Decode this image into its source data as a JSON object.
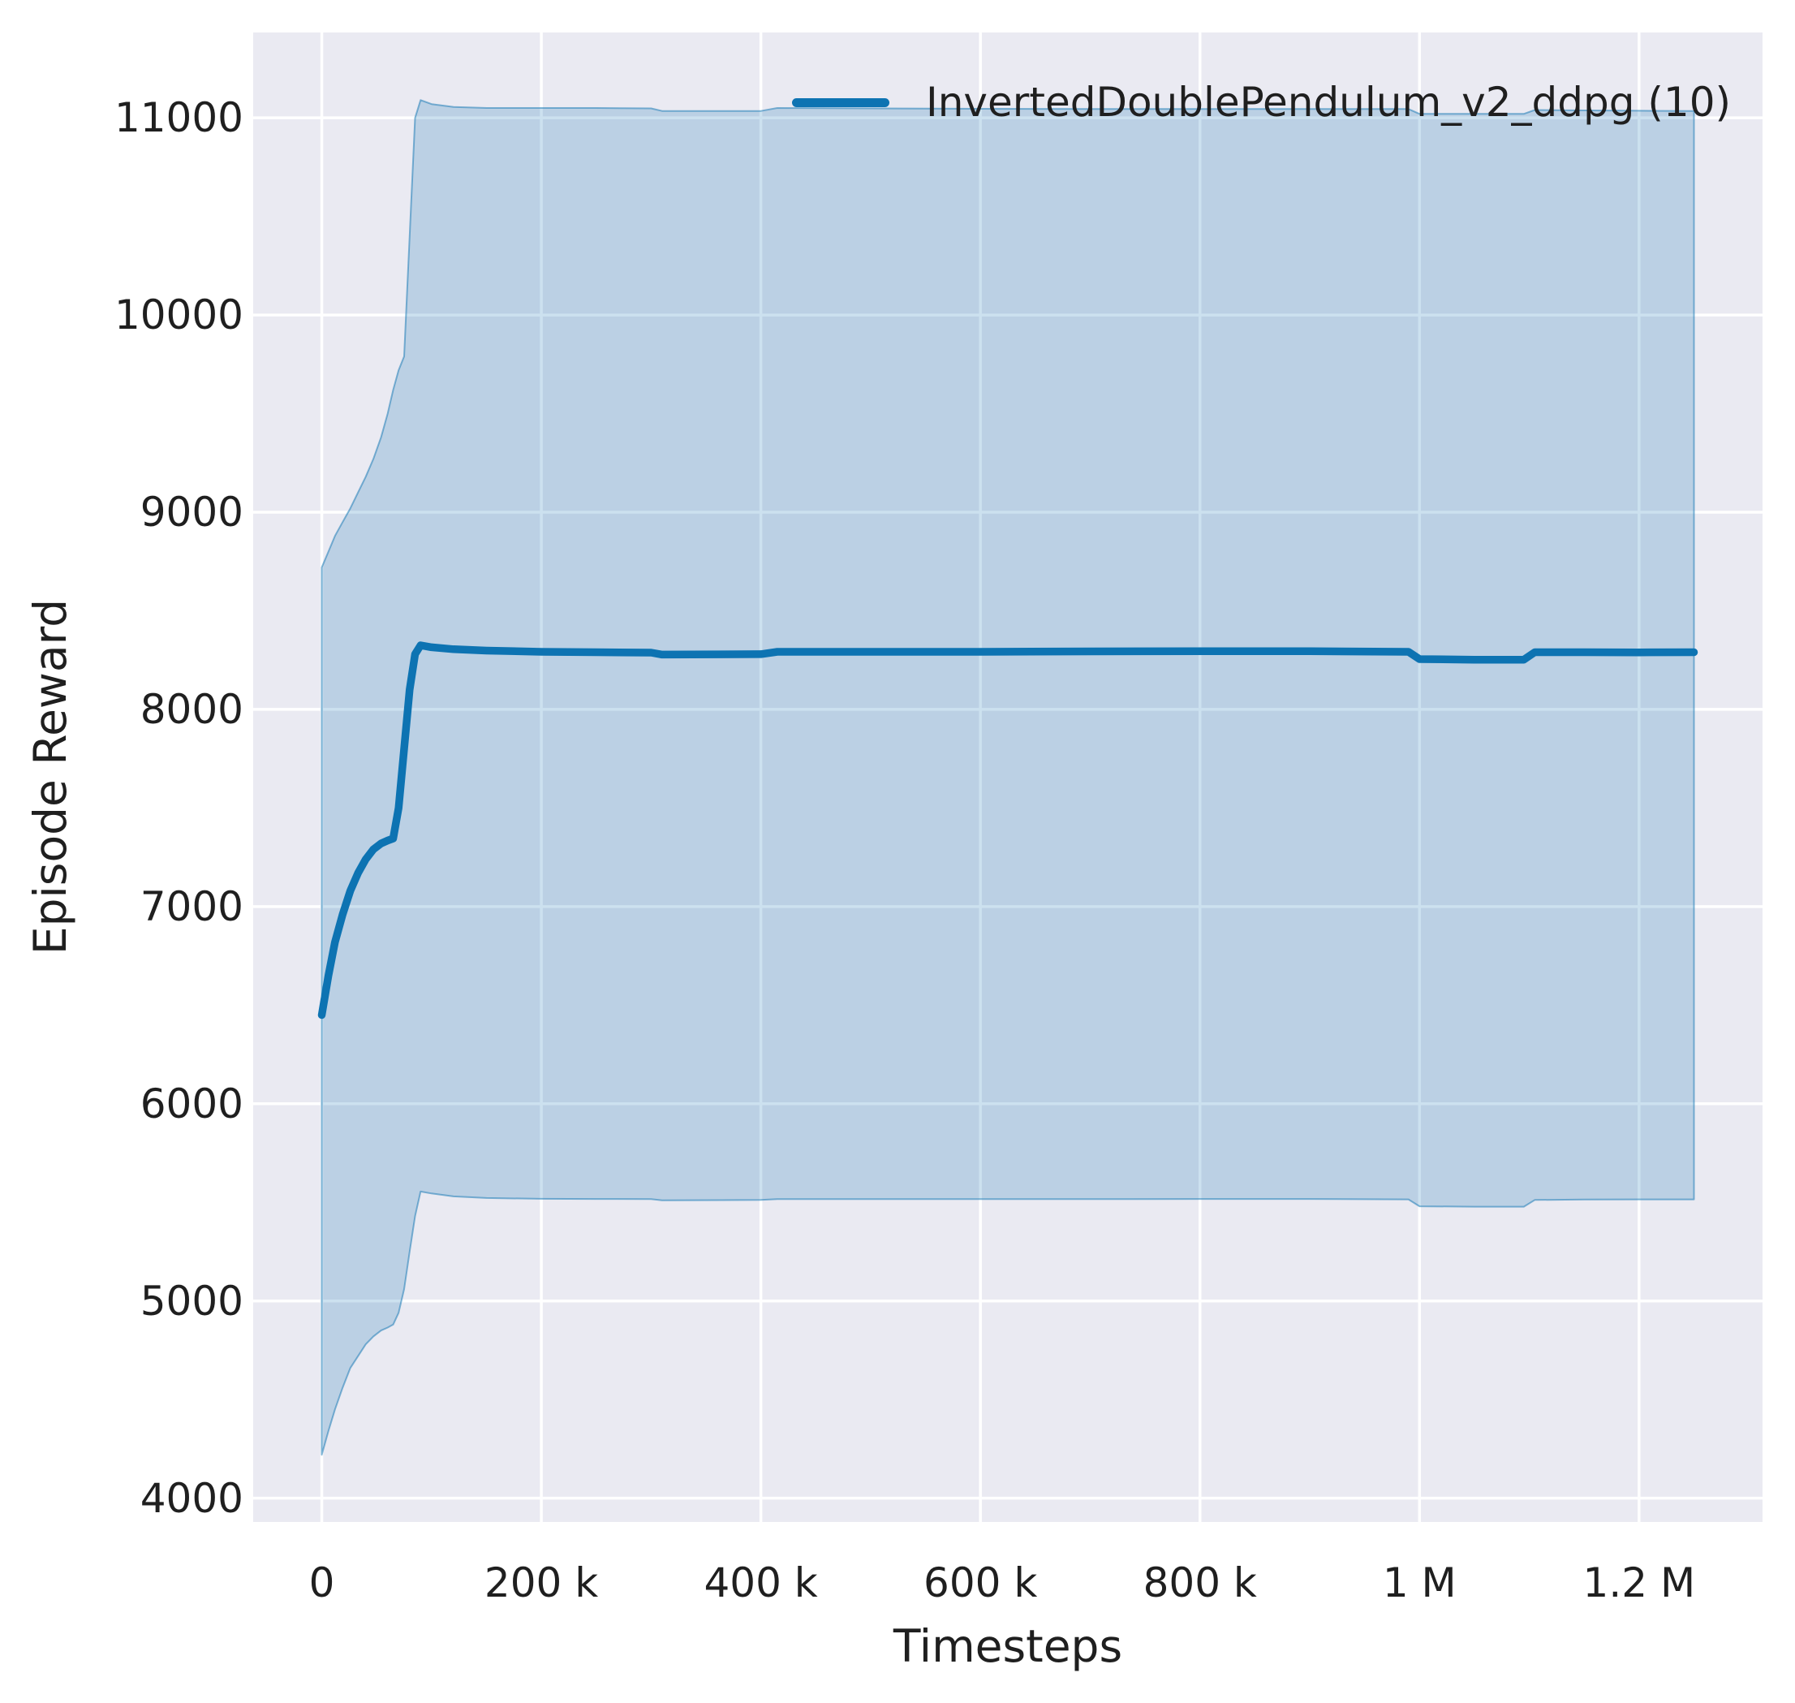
{
  "figure": {
    "xlabel": "Timesteps",
    "ylabel": "Episode Reward"
  },
  "legend": {
    "label": "InvertedDoublePendulum_v2_ddpg (10)"
  },
  "colors": {
    "figure_bg": "#ffffff",
    "axes_bg": "#eaeaf2",
    "grid": "#ffffff",
    "line": "#0d73b2",
    "band_fill": "rgba(13,115,178,0.21)",
    "band_edge": "rgba(13,115,178,0.50)",
    "text": "#1f1f1f"
  },
  "chart_data": {
    "type": "line",
    "title": "",
    "xlabel": "Timesteps",
    "ylabel": "Episode Reward",
    "grid": true,
    "legend_position": "upper right",
    "legend_frame": false,
    "x_ticks": {
      "values": [
        0,
        200000,
        400000,
        600000,
        800000,
        1000000,
        1200000
      ],
      "labels": [
        "0",
        "200 k",
        "400 k",
        "600 k",
        "800 k",
        "1 M",
        "1.2 M"
      ]
    },
    "y_ticks": {
      "values": [
        4000,
        5000,
        6000,
        7000,
        8000,
        9000,
        10000,
        11000
      ],
      "labels": [
        "4000",
        "5000",
        "6000",
        "7000",
        "8000",
        "9000",
        "10000",
        "11000"
      ]
    },
    "xlim": [
      -62500,
      1312500
    ],
    "ylim": [
      3879,
      11433
    ],
    "series": [
      {
        "name": "InvertedDoublePendulum_v2_ddpg (10)",
        "color": "#0d73b2",
        "x": [
          0,
          6000,
          12000,
          19000,
          26000,
          33000,
          40000,
          47000,
          54000,
          60000,
          65000,
          70000,
          75000,
          80000,
          85000,
          90000,
          100000,
          120000,
          150000,
          200000,
          250000,
          300000,
          310000,
          400000,
          415000,
          500000,
          600000,
          700000,
          800000,
          900000,
          990000,
          1000000,
          1050000,
          1095000,
          1105000,
          1150000,
          1200000,
          1250000
        ],
        "mean": [
          6450,
          6650,
          6820,
          6960,
          7080,
          7170,
          7240,
          7290,
          7320,
          7335,
          7345,
          7500,
          7800,
          8100,
          8280,
          8325,
          8315,
          8305,
          8298,
          8292,
          8290,
          8288,
          8278,
          8280,
          8292,
          8292,
          8292,
          8294,
          8295,
          8295,
          8292,
          8255,
          8252,
          8252,
          8290,
          8290,
          8289,
          8290
        ],
        "band_upper": [
          8720,
          8800,
          8880,
          8950,
          9020,
          9100,
          9180,
          9270,
          9380,
          9500,
          9620,
          9720,
          9790,
          10400,
          11000,
          11090,
          11070,
          11055,
          11050,
          11050,
          11050,
          11048,
          11035,
          11035,
          11050,
          11048,
          11046,
          11045,
          11045,
          11045,
          11045,
          11020,
          11020,
          11020,
          11040,
          11038,
          11036,
          11035
        ],
        "band_lower": [
          4220,
          4340,
          4450,
          4560,
          4660,
          4720,
          4780,
          4820,
          4850,
          4865,
          4880,
          4940,
          5060,
          5250,
          5430,
          5555,
          5545,
          5530,
          5522,
          5518,
          5517,
          5516,
          5510,
          5512,
          5516,
          5516,
          5516,
          5516,
          5517,
          5517,
          5515,
          5480,
          5478,
          5478,
          5512,
          5514,
          5515,
          5515
        ]
      }
    ]
  }
}
